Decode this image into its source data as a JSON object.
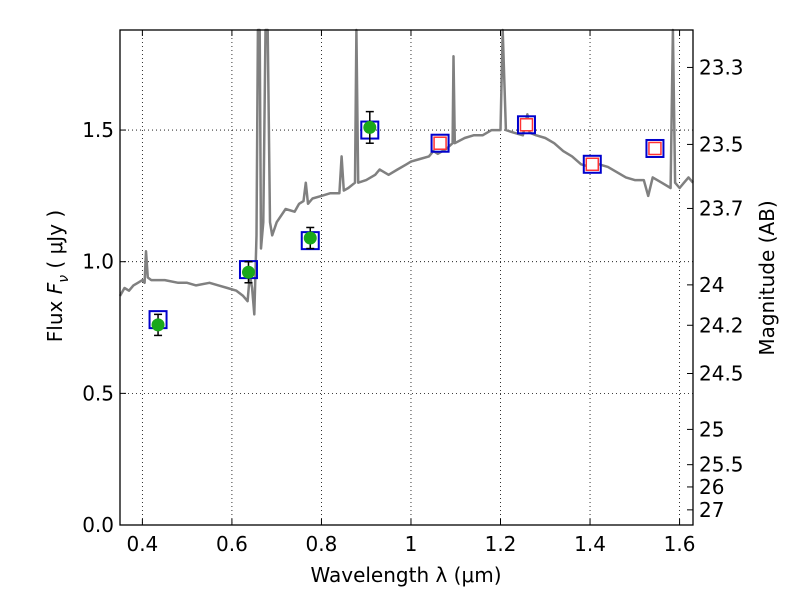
{
  "chart_data": {
    "type": "scatter",
    "xlabel": "Wavelength  λ (μm)",
    "ylabel": "Flux  F_ν  ( μJy )",
    "ylabel_parts": {
      "prefix": "Flux ",
      "symbol": "F",
      "sub": "ν",
      "unit": " ( μJy )"
    },
    "y2label": "Magnitude (AB)",
    "xlim": [
      0.35,
      1.63
    ],
    "ylim": [
      0.0,
      1.88
    ],
    "grid": true,
    "x_ticks": [
      {
        "value": 0.4,
        "label": "0.4"
      },
      {
        "value": 0.6,
        "label": "0.6"
      },
      {
        "value": 0.8,
        "label": "0.8"
      },
      {
        "value": 1.0,
        "label": "1"
      },
      {
        "value": 1.2,
        "label": "1.2"
      },
      {
        "value": 1.4,
        "label": "1.4"
      },
      {
        "value": 1.6,
        "label": "1.6"
      }
    ],
    "y_ticks": [
      {
        "value": 0.0,
        "label": "0.0"
      },
      {
        "value": 0.5,
        "label": "0.5"
      },
      {
        "value": 1.0,
        "label": "1.0"
      },
      {
        "value": 1.5,
        "label": "1.5"
      }
    ],
    "y2_ticks": [
      {
        "value": 23.3,
        "label": "23.3"
      },
      {
        "value": 23.5,
        "label": "23.5"
      },
      {
        "value": 23.7,
        "label": "23.7"
      },
      {
        "value": 24.0,
        "label": "24"
      },
      {
        "value": 24.2,
        "label": "24.2"
      },
      {
        "value": 24.5,
        "label": "24.5"
      },
      {
        "value": 25.0,
        "label": "25"
      },
      {
        "value": 25.5,
        "label": "25.5"
      },
      {
        "value": 26.0,
        "label": "26"
      },
      {
        "value": 27.0,
        "label": "27"
      }
    ],
    "colors": {
      "spectrum": "#808080",
      "observed_marker": "#1aa81a",
      "observed_errorbar": "#000000",
      "model_box": "#0000cc",
      "model_inner_box": "#ff3333",
      "grid": "#000000"
    },
    "observed": [
      {
        "x": 0.435,
        "y": 0.76,
        "yerr": 0.04
      },
      {
        "x": 0.637,
        "y": 0.96,
        "yerr": 0.04
      },
      {
        "x": 0.775,
        "y": 1.09,
        "yerr": 0.04
      },
      {
        "x": 0.908,
        "y": 1.51,
        "yerr": 0.06
      }
    ],
    "model_points": [
      {
        "x": 0.435,
        "y": 0.78,
        "inner": false
      },
      {
        "x": 0.637,
        "y": 0.97,
        "inner": false
      },
      {
        "x": 0.775,
        "y": 1.08,
        "inner": false
      },
      {
        "x": 0.908,
        "y": 1.5,
        "inner": false
      },
      {
        "x": 1.065,
        "y": 1.45,
        "inner": true
      },
      {
        "x": 1.258,
        "y": 1.52,
        "inner": true
      },
      {
        "x": 1.405,
        "y": 1.37,
        "inner": true
      },
      {
        "x": 1.545,
        "y": 1.43,
        "inner": true
      }
    ],
    "spectrum": [
      [
        0.35,
        0.87
      ],
      [
        0.36,
        0.9
      ],
      [
        0.37,
        0.89
      ],
      [
        0.38,
        0.91
      ],
      [
        0.39,
        0.92
      ],
      [
        0.4,
        0.93
      ],
      [
        0.405,
        0.92
      ],
      [
        0.408,
        1.04
      ],
      [
        0.412,
        0.94
      ],
      [
        0.42,
        0.93
      ],
      [
        0.45,
        0.93
      ],
      [
        0.48,
        0.92
      ],
      [
        0.5,
        0.92
      ],
      [
        0.52,
        0.91
      ],
      [
        0.55,
        0.92
      ],
      [
        0.57,
        0.91
      ],
      [
        0.59,
        0.9
      ],
      [
        0.61,
        0.89
      ],
      [
        0.625,
        0.87
      ],
      [
        0.635,
        0.85
      ],
      [
        0.64,
        0.95
      ],
      [
        0.645,
        0.9
      ],
      [
        0.65,
        0.8
      ],
      [
        0.655,
        1.1
      ],
      [
        0.658,
        1.88
      ],
      [
        0.662,
        1.88
      ],
      [
        0.665,
        1.05
      ],
      [
        0.67,
        1.15
      ],
      [
        0.675,
        1.88
      ],
      [
        0.68,
        1.88
      ],
      [
        0.685,
        1.15
      ],
      [
        0.69,
        1.1
      ],
      [
        0.7,
        1.15
      ],
      [
        0.72,
        1.2
      ],
      [
        0.74,
        1.19
      ],
      [
        0.75,
        1.22
      ],
      [
        0.76,
        1.23
      ],
      [
        0.765,
        1.3
      ],
      [
        0.77,
        1.22
      ],
      [
        0.78,
        1.24
      ],
      [
        0.8,
        1.25
      ],
      [
        0.82,
        1.26
      ],
      [
        0.84,
        1.26
      ],
      [
        0.845,
        1.4
      ],
      [
        0.85,
        1.27
      ],
      [
        0.86,
        1.28
      ],
      [
        0.875,
        1.3
      ],
      [
        0.878,
        1.88
      ],
      [
        0.882,
        1.3
      ],
      [
        0.9,
        1.31
      ],
      [
        0.92,
        1.33
      ],
      [
        0.93,
        1.35
      ],
      [
        0.95,
        1.33
      ],
      [
        0.97,
        1.35
      ],
      [
        0.99,
        1.37
      ],
      [
        1.0,
        1.38
      ],
      [
        1.02,
        1.39
      ],
      [
        1.04,
        1.4
      ],
      [
        1.05,
        1.42
      ],
      [
        1.06,
        1.41
      ],
      [
        1.08,
        1.43
      ],
      [
        1.093,
        1.45
      ],
      [
        1.095,
        1.78
      ],
      [
        1.098,
        1.45
      ],
      [
        1.12,
        1.47
      ],
      [
        1.14,
        1.48
      ],
      [
        1.16,
        1.48
      ],
      [
        1.18,
        1.5
      ],
      [
        1.2,
        1.5
      ],
      [
        1.205,
        1.88
      ],
      [
        1.212,
        1.5
      ],
      [
        1.23,
        1.49
      ],
      [
        1.25,
        1.48
      ],
      [
        1.26,
        1.56
      ],
      [
        1.265,
        1.49
      ],
      [
        1.28,
        1.48
      ],
      [
        1.3,
        1.47
      ],
      [
        1.32,
        1.45
      ],
      [
        1.34,
        1.42
      ],
      [
        1.36,
        1.4
      ],
      [
        1.38,
        1.37
      ],
      [
        1.4,
        1.36
      ],
      [
        1.42,
        1.37
      ],
      [
        1.44,
        1.36
      ],
      [
        1.46,
        1.34
      ],
      [
        1.48,
        1.32
      ],
      [
        1.5,
        1.31
      ],
      [
        1.52,
        1.31
      ],
      [
        1.53,
        1.25
      ],
      [
        1.54,
        1.32
      ],
      [
        1.56,
        1.3
      ],
      [
        1.58,
        1.28
      ],
      [
        1.585,
        1.88
      ],
      [
        1.59,
        1.3
      ],
      [
        1.6,
        1.28
      ],
      [
        1.61,
        1.3
      ],
      [
        1.62,
        1.32
      ],
      [
        1.63,
        1.3
      ]
    ]
  }
}
